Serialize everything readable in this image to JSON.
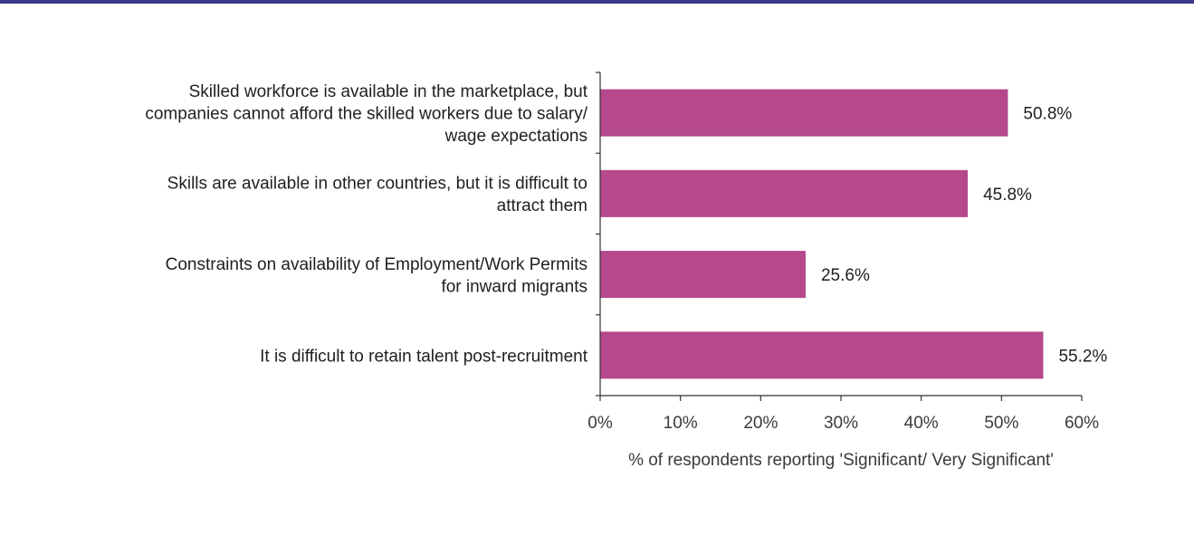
{
  "colors": {
    "top_rule": "#3c3b8a",
    "bar": "#b5498c",
    "axis": "#333333"
  },
  "chart_data": {
    "type": "bar",
    "orientation": "horizontal",
    "categories": [
      [
        "Skilled workforce is available in the marketplace, but",
        "companies cannot afford the skilled workers due to salary/",
        "wage expectations"
      ],
      [
        "Skills are available in other countries, but it is difficult to",
        "attract them"
      ],
      [
        "Constraints on availability of Employment/Work Permits",
        "for inward migrants"
      ],
      [
        "It is difficult to retain talent post-recruitment"
      ]
    ],
    "values": [
      50.8,
      45.8,
      25.6,
      55.2
    ],
    "value_labels": [
      "50.8%",
      "45.8%",
      "25.6%",
      "55.2%"
    ],
    "xlim": [
      0,
      60
    ],
    "ticks": [
      0,
      10,
      20,
      30,
      40,
      50,
      60
    ],
    "tick_labels": [
      "0%",
      "10%",
      "20%",
      "30%",
      "40%",
      "50%",
      "60%"
    ],
    "xlabel": "% of respondents reporting 'Significant/ Very Significant'",
    "grid": false,
    "legend": "none"
  }
}
